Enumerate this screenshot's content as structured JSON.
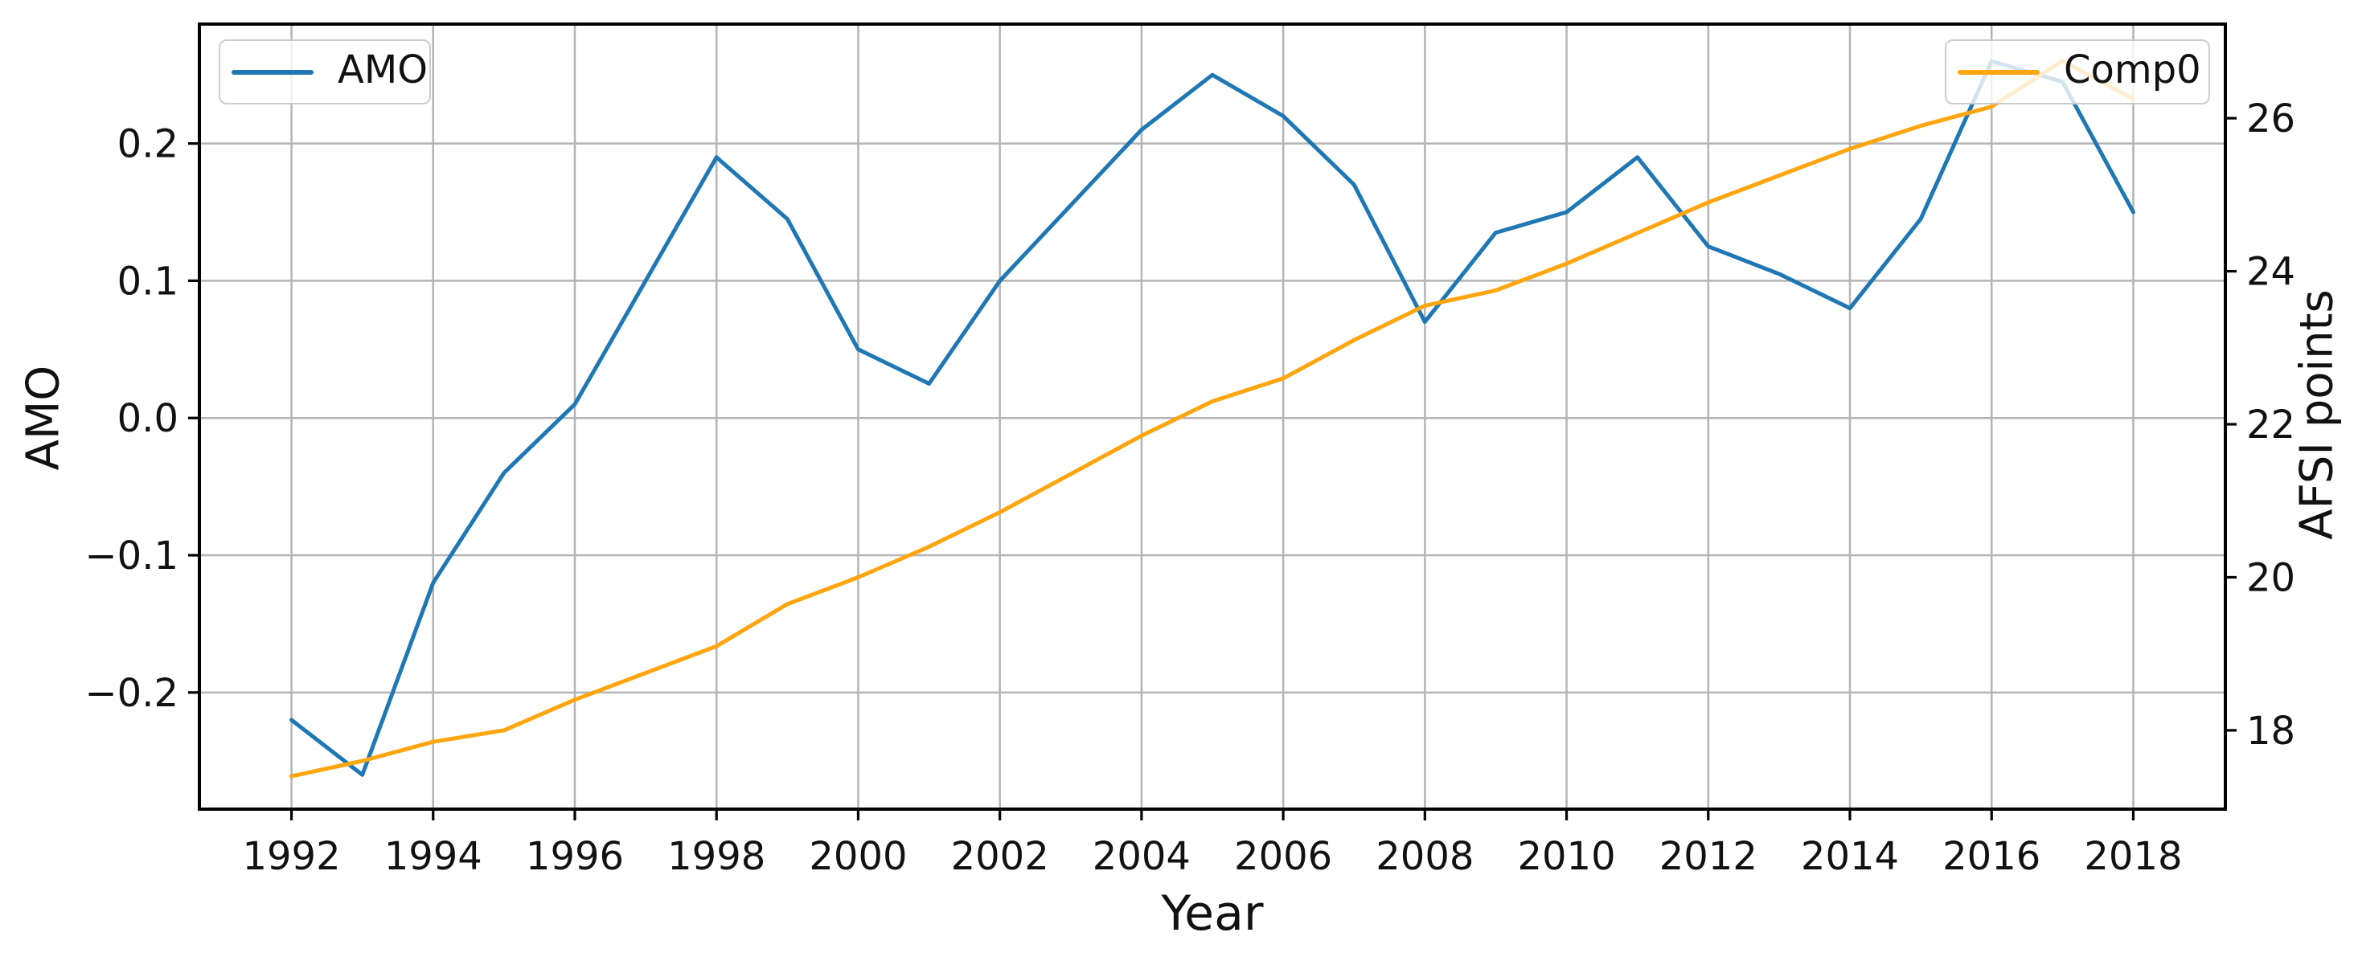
{
  "figure": {
    "background": "#ffffff",
    "grid_color": "#b4b4b4",
    "spine_color": "#000000",
    "text_color": "#111111",
    "legend_border_color": "#cccccc"
  },
  "chart_data": {
    "type": "line",
    "title": "",
    "xlabel": "Year",
    "ylabel_left": "AMO",
    "ylabel_right": "AFSI points",
    "grid": true,
    "x": [
      1992,
      1993,
      1994,
      1995,
      1996,
      1997,
      1998,
      1999,
      2000,
      2001,
      2002,
      2003,
      2004,
      2005,
      2006,
      2007,
      2008,
      2009,
      2010,
      2011,
      2012,
      2013,
      2014,
      2015,
      2016,
      2017,
      2018
    ],
    "x_ticks": [
      1992,
      1994,
      1996,
      1998,
      2000,
      2002,
      2004,
      2006,
      2008,
      2010,
      2012,
      2014,
      2016,
      2018
    ],
    "x_tick_labels": [
      "1992",
      "1994",
      "1996",
      "1998",
      "2000",
      "2002",
      "2004",
      "2006",
      "2008",
      "2010",
      "2012",
      "2014",
      "2016",
      "2018"
    ],
    "y_left_ticks": [
      0.2,
      0.1,
      0.0,
      -0.1,
      -0.2
    ],
    "y_left_tick_labels": [
      "0.2",
      "0.1",
      "0.0",
      "−0.1",
      "−0.2"
    ],
    "y_right_ticks": [
      26,
      24,
      22,
      20,
      18
    ],
    "y_right_tick_labels": [
      "26",
      "24",
      "22",
      "20",
      "18"
    ],
    "xlim": [
      1990.7,
      2019.3
    ],
    "ylim_left": [
      -0.285,
      0.287
    ],
    "ylim_right": [
      16.97,
      27.23
    ],
    "series": [
      {
        "name": "AMO",
        "axis": "left",
        "color": "#1f77b4",
        "legend_position": "upper left",
        "values": [
          -0.22,
          -0.26,
          -0.12,
          -0.04,
          0.01,
          0.1,
          0.19,
          0.145,
          0.05,
          0.025,
          0.1,
          0.155,
          0.21,
          0.25,
          0.22,
          0.17,
          0.07,
          0.135,
          0.15,
          0.19,
          0.125,
          0.105,
          0.08,
          0.145,
          0.26,
          0.245,
          0.15
        ]
      },
      {
        "name": "Comp0",
        "axis": "right",
        "color": "#ffa50e",
        "legend_position": "upper right",
        "values": [
          17.4,
          17.6,
          17.85,
          18.0,
          18.4,
          18.75,
          19.1,
          19.65,
          20.0,
          20.4,
          20.85,
          21.35,
          21.85,
          22.3,
          22.6,
          23.1,
          23.55,
          23.75,
          24.1,
          24.5,
          24.9,
          25.25,
          25.6,
          25.9,
          26.15,
          26.75,
          26.25
        ]
      }
    ]
  },
  "legend_left": {
    "label": "AMO"
  },
  "legend_right": {
    "label": "Comp0"
  }
}
